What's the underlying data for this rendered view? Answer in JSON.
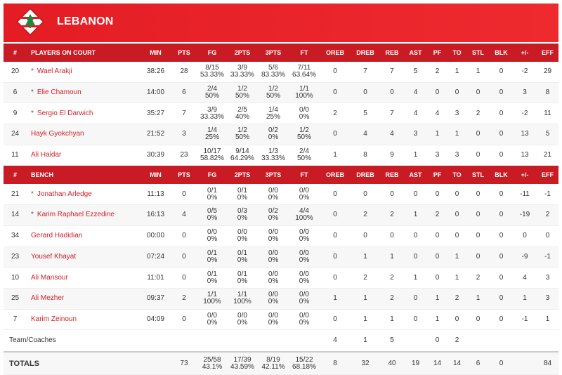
{
  "header": {
    "team": "LEBANON"
  },
  "sections": [
    {
      "header": [
        "#",
        "PLAYERS ON COURT",
        "MIN",
        "PTS",
        "FG",
        "2PTS",
        "3PTS",
        "FT",
        "OREB",
        "DREB",
        "REB",
        "AST",
        "PF",
        "TO",
        "STL",
        "BLK",
        "+/-",
        "EFF"
      ],
      "rows": [
        {
          "no": "20",
          "star": "*",
          "name": "Wael Arakji",
          "stats": [
            "38:26",
            "28",
            [
              "8/15",
              "53.33%"
            ],
            [
              "3/9",
              "33.33%"
            ],
            [
              "5/6",
              "83.33%"
            ],
            [
              "7/11",
              "63.64%"
            ],
            "0",
            "7",
            "7",
            "5",
            "2",
            "1",
            "1",
            "0",
            "-2",
            "29"
          ]
        },
        {
          "no": "6",
          "star": "*",
          "name": "Elie Chamoun",
          "stats": [
            "14:00",
            "6",
            [
              "2/4",
              "50%"
            ],
            [
              "1/2",
              "50%"
            ],
            [
              "1/2",
              "50%"
            ],
            [
              "1/1",
              "100%"
            ],
            "0",
            "0",
            "0",
            "4",
            "0",
            "0",
            "0",
            "0",
            "3",
            "8"
          ]
        },
        {
          "no": "9",
          "star": "*",
          "name": "Sergio El Darwich",
          "stats": [
            "35:27",
            "7",
            [
              "3/9",
              "33.33%"
            ],
            [
              "2/5",
              "40%"
            ],
            [
              "1/4",
              "25%"
            ],
            [
              "0/0",
              "0%"
            ],
            "2",
            "5",
            "7",
            "4",
            "4",
            "3",
            "2",
            "0",
            "-2",
            "11"
          ]
        },
        {
          "no": "24",
          "name": "Hayk Gyokchyan",
          "stats": [
            "21:52",
            "3",
            [
              "1/4",
              "25%"
            ],
            [
              "1/2",
              "50%"
            ],
            [
              "0/2",
              "0%"
            ],
            [
              "1/2",
              "50%"
            ],
            "0",
            "4",
            "4",
            "3",
            "1",
            "1",
            "0",
            "0",
            "13",
            "5"
          ]
        },
        {
          "no": "11",
          "name": "Ali Haidar",
          "stats": [
            "30:39",
            "23",
            [
              "10/17",
              "58.82%"
            ],
            [
              "9/14",
              "64.29%"
            ],
            [
              "1/3",
              "33.33%"
            ],
            [
              "2/4",
              "50%"
            ],
            "1",
            "8",
            "9",
            "1",
            "3",
            "3",
            "0",
            "0",
            "13",
            "21"
          ]
        }
      ]
    },
    {
      "header": [
        "#",
        "BENCH",
        "MIN",
        "PTS",
        "FG",
        "2PTS",
        "3PTS",
        "FT",
        "OREB",
        "DREB",
        "REB",
        "AST",
        "PF",
        "TO",
        "STL",
        "BLK",
        "+/-",
        "EFF"
      ],
      "rows": [
        {
          "no": "21",
          "star": "*",
          "name": "Jonathan Arledge",
          "stats": [
            "11:13",
            "0",
            [
              "0/1",
              "0%"
            ],
            [
              "0/1",
              "0%"
            ],
            [
              "0/0",
              "0%"
            ],
            [
              "0/0",
              "0%"
            ],
            "0",
            "0",
            "0",
            "0",
            "0",
            "0",
            "0",
            "0",
            "-11",
            "-1"
          ]
        },
        {
          "no": "14",
          "star": "*",
          "name": "Karim Raphael Ezzedine",
          "stats": [
            "16:13",
            "4",
            [
              "0/5",
              "0%"
            ],
            [
              "0/3",
              "0%"
            ],
            [
              "0/2",
              "0%"
            ],
            [
              "4/4",
              "100%"
            ],
            "0",
            "2",
            "2",
            "1",
            "2",
            "0",
            "0",
            "0",
            "-19",
            "2"
          ]
        },
        {
          "no": "34",
          "name": "Gerard Hadidian",
          "stats": [
            "00:00",
            "0",
            [
              "0/0",
              "0%"
            ],
            [
              "0/0",
              "0%"
            ],
            [
              "0/0",
              "0%"
            ],
            [
              "0/0",
              "0%"
            ],
            "0",
            "0",
            "0",
            "0",
            "0",
            "0",
            "0",
            "0",
            "0",
            "0"
          ]
        },
        {
          "no": "23",
          "name": "Yousef Khayat",
          "stats": [
            "07:24",
            "0",
            [
              "0/1",
              "0%"
            ],
            [
              "0/1",
              "0%"
            ],
            [
              "0/0",
              "0%"
            ],
            [
              "0/0",
              "0%"
            ],
            "0",
            "1",
            "1",
            "0",
            "0",
            "1",
            "0",
            "0",
            "-9",
            "-1"
          ]
        },
        {
          "no": "10",
          "name": "Ali Mansour",
          "stats": [
            "11:01",
            "0",
            [
              "0/1",
              "0%"
            ],
            [
              "0/1",
              "0%"
            ],
            [
              "0/0",
              "0%"
            ],
            [
              "0/0",
              "0%"
            ],
            "0",
            "2",
            "2",
            "1",
            "0",
            "1",
            "2",
            "0",
            "4",
            "3"
          ]
        },
        {
          "no": "25",
          "name": "Ali Mezher",
          "stats": [
            "09:37",
            "2",
            [
              "1/1",
              "100%"
            ],
            [
              "1/1",
              "100%"
            ],
            [
              "0/0",
              "0%"
            ],
            [
              "0/0",
              "0%"
            ],
            "1",
            "1",
            "2",
            "0",
            "1",
            "2",
            "1",
            "0",
            "1",
            "3"
          ]
        },
        {
          "no": "7",
          "name": "Karim Zeinoun",
          "stats": [
            "04:09",
            "0",
            [
              "0/0",
              "0%"
            ],
            [
              "0/0",
              "0%"
            ],
            [
              "0/0",
              "0%"
            ],
            [
              "0/0",
              "0%"
            ],
            "0",
            "1",
            "1",
            "0",
            "1",
            "0",
            "0",
            "0",
            "-1",
            "1"
          ]
        }
      ]
    }
  ],
  "team_row": {
    "label": "Team/Coaches",
    "stats": [
      null,
      null,
      null,
      null,
      null,
      null,
      "4",
      "1",
      "5",
      null,
      "0",
      "2",
      null,
      null,
      null,
      null
    ]
  },
  "totals": {
    "label": "TOTALS",
    "stats": [
      null,
      "73",
      [
        "25/58",
        "43.1%"
      ],
      [
        "17/39",
        "43.59%"
      ],
      [
        "8/19",
        "42.11%"
      ],
      [
        "15/22",
        "68.18%"
      ],
      "8",
      "32",
      "40",
      "19",
      "14",
      "14",
      "6",
      "0",
      null,
      "84"
    ]
  }
}
